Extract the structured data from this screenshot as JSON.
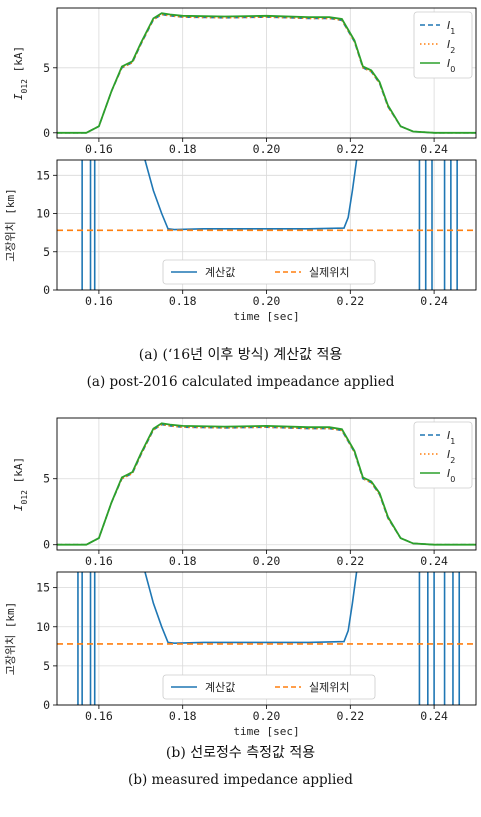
{
  "panels": [
    {
      "caption_ko": "(a) (‘16년 이후 방식) 계산값 적용",
      "caption_en": "(a) post-2016 calculated impeadance applied"
    },
    {
      "caption_ko": "(b) 선로정수 측정값 적용",
      "caption_en": "(b) measured impedance applied"
    }
  ],
  "colors": {
    "blue": "#1f77b4",
    "orange": "#ff7f0e",
    "green": "#2ca02c",
    "grid": "#d9d9d9"
  },
  "chart_data": [
    {
      "type": "line",
      "xlabel": "",
      "ylabel": "I_012 [kA]",
      "xlim": [
        0.15,
        0.25
      ],
      "ylim": [
        -0.4,
        9.6
      ],
      "xticks": [
        0.16,
        0.18,
        0.2,
        0.22,
        0.24
      ],
      "xtick_labels": [
        "0.16",
        "0.18",
        "0.20",
        "0.22",
        "0.24"
      ],
      "yticks": [
        0,
        5
      ],
      "grid": true,
      "legend_position": "top-right",
      "x": [
        0.15,
        0.157,
        0.16,
        0.163,
        0.1655,
        0.168,
        0.17,
        0.173,
        0.175,
        0.177,
        0.18,
        0.19,
        0.2,
        0.21,
        0.215,
        0.218,
        0.221,
        0.223,
        0.225,
        0.227,
        0.229,
        0.232,
        0.235,
        0.24,
        0.25
      ],
      "series": [
        {
          "name": "I_1",
          "style": "dashed",
          "color": "#1f77b4",
          "values": [
            0,
            0,
            0.5,
            3.2,
            5.0,
            5.4,
            6.8,
            8.7,
            9.1,
            9.0,
            8.9,
            8.85,
            8.9,
            8.8,
            8.8,
            8.65,
            7.0,
            5.0,
            4.7,
            3.8,
            2.0,
            0.5,
            0.1,
            0,
            0
          ]
        },
        {
          "name": "I_2",
          "style": "dotted",
          "color": "#ff7f0e",
          "values": [
            0,
            0,
            0.5,
            3.2,
            5.0,
            5.4,
            6.8,
            8.7,
            9.1,
            9.0,
            8.9,
            8.85,
            8.9,
            8.8,
            8.8,
            8.65,
            7.0,
            5.0,
            4.7,
            3.8,
            2.0,
            0.5,
            0.1,
            0,
            0
          ]
        },
        {
          "name": "I_0",
          "style": "solid",
          "color": "#2ca02c",
          "values": [
            0,
            0,
            0.5,
            3.2,
            5.1,
            5.5,
            6.9,
            8.8,
            9.2,
            9.1,
            9.0,
            8.95,
            9.0,
            8.9,
            8.9,
            8.75,
            7.1,
            5.1,
            4.8,
            3.9,
            2.1,
            0.5,
            0.1,
            0,
            0
          ]
        }
      ]
    },
    {
      "type": "line",
      "xlabel": "time [sec]",
      "ylabel": "고장위치 [km]",
      "xlim": [
        0.15,
        0.25
      ],
      "ylim": [
        0,
        17
      ],
      "xticks": [
        0.16,
        0.18,
        0.2,
        0.22,
        0.24
      ],
      "xtick_labels": [
        "0.16",
        "0.18",
        "0.20",
        "0.22",
        "0.24"
      ],
      "yticks": [
        0,
        5,
        10,
        15
      ],
      "grid": true,
      "legend_position": "bottom-center",
      "series": [
        {
          "name": "계산값",
          "style": "solid",
          "color": "#1f77b4",
          "x": [
            0.171,
            0.173,
            0.175,
            0.1765,
            0.178,
            0.185,
            0.2,
            0.21,
            0.2185,
            0.2195,
            0.2205,
            0.2215
          ],
          "values": [
            17,
            13.0,
            10.0,
            8.0,
            7.9,
            8.0,
            8.0,
            8.0,
            8.1,
            9.5,
            13.0,
            17
          ],
          "spikes_x": [
            0.156,
            0.158,
            0.159,
            0.2365,
            0.238,
            0.2395,
            0.2425,
            0.244,
            0.2455
          ]
        },
        {
          "name": "실제위치",
          "style": "dashed",
          "color": "#ff7f0e",
          "constant": 7.8
        }
      ]
    },
    {
      "type": "line",
      "xlabel": "",
      "ylabel": "I_012 [kA]",
      "xlim": [
        0.15,
        0.25
      ],
      "ylim": [
        -0.4,
        9.6
      ],
      "xticks": [
        0.16,
        0.18,
        0.2,
        0.22,
        0.24
      ],
      "xtick_labels": [
        "0.16",
        "0.18",
        "0.20",
        "0.22",
        "0.24"
      ],
      "yticks": [
        0,
        5
      ],
      "grid": true,
      "legend_position": "top-right",
      "x": [
        0.15,
        0.157,
        0.16,
        0.163,
        0.1655,
        0.168,
        0.17,
        0.173,
        0.175,
        0.177,
        0.18,
        0.19,
        0.2,
        0.21,
        0.215,
        0.218,
        0.221,
        0.223,
        0.225,
        0.227,
        0.229,
        0.232,
        0.235,
        0.24,
        0.25
      ],
      "series": [
        {
          "name": "I_1",
          "style": "dashed",
          "color": "#1f77b4",
          "values": [
            0,
            0,
            0.5,
            3.2,
            5.0,
            5.4,
            6.8,
            8.7,
            9.1,
            9.0,
            8.9,
            8.85,
            8.9,
            8.8,
            8.8,
            8.65,
            7.0,
            5.0,
            4.7,
            3.8,
            2.0,
            0.5,
            0.1,
            0,
            0
          ]
        },
        {
          "name": "I_2",
          "style": "dotted",
          "color": "#ff7f0e",
          "values": [
            0,
            0,
            0.5,
            3.2,
            5.0,
            5.4,
            6.8,
            8.7,
            9.1,
            9.0,
            8.9,
            8.85,
            8.9,
            8.8,
            8.8,
            8.65,
            7.0,
            5.0,
            4.7,
            3.8,
            2.0,
            0.5,
            0.1,
            0,
            0
          ]
        },
        {
          "name": "I_0",
          "style": "solid",
          "color": "#2ca02c",
          "values": [
            0,
            0,
            0.5,
            3.2,
            5.1,
            5.5,
            6.9,
            8.8,
            9.2,
            9.1,
            9.0,
            8.95,
            9.0,
            8.9,
            8.9,
            8.75,
            7.1,
            5.1,
            4.8,
            3.9,
            2.1,
            0.5,
            0.1,
            0,
            0
          ]
        }
      ]
    },
    {
      "type": "line",
      "xlabel": "time [sec]",
      "ylabel": "고장위치 [km]",
      "xlim": [
        0.15,
        0.25
      ],
      "ylim": [
        0,
        17
      ],
      "xticks": [
        0.16,
        0.18,
        0.2,
        0.22,
        0.24
      ],
      "xtick_labels": [
        "0.16",
        "0.18",
        "0.20",
        "0.22",
        "0.24"
      ],
      "yticks": [
        0,
        5,
        10,
        15
      ],
      "grid": true,
      "legend_position": "bottom-center",
      "series": [
        {
          "name": "계산값",
          "style": "solid",
          "color": "#1f77b4",
          "x": [
            0.171,
            0.173,
            0.175,
            0.1765,
            0.178,
            0.185,
            0.2,
            0.21,
            0.2185,
            0.2195,
            0.2205,
            0.2215
          ],
          "values": [
            17,
            13.0,
            10.0,
            8.0,
            7.9,
            8.0,
            8.0,
            8.0,
            8.1,
            9.5,
            13.0,
            17
          ],
          "spikes_x": [
            0.155,
            0.156,
            0.158,
            0.159,
            0.2365,
            0.2385,
            0.24,
            0.2425,
            0.2445,
            0.246
          ]
        },
        {
          "name": "실제위치",
          "style": "dashed",
          "color": "#ff7f0e",
          "constant": 7.8
        }
      ]
    }
  ]
}
